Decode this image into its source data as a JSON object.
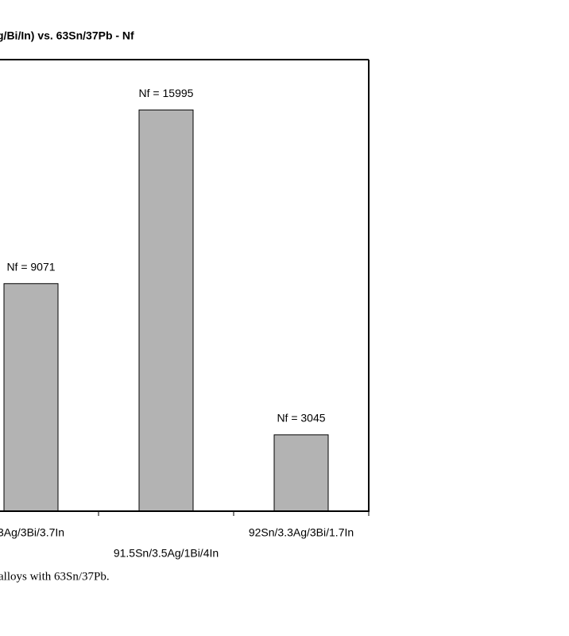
{
  "chart_data": {
    "type": "bar",
    "title": "g/Bi/In) vs. 63Sn/37Pb - Nf",
    "categories": [
      "3Ag/3Bi/3.7In",
      "91.5Sn/3.5Ag/1Bi/4In",
      "92Sn/3.3Ag/3Bi/1.7In"
    ],
    "values": [
      9071,
      15995,
      3045
    ],
    "value_labels": [
      "Nf = 9071",
      "Nf = 15995",
      "Nf = 3045"
    ],
    "color": "#b3b3b3",
    "ylim": [
      0,
      18000
    ]
  },
  "caption": "alloys with 63Sn/37Pb."
}
